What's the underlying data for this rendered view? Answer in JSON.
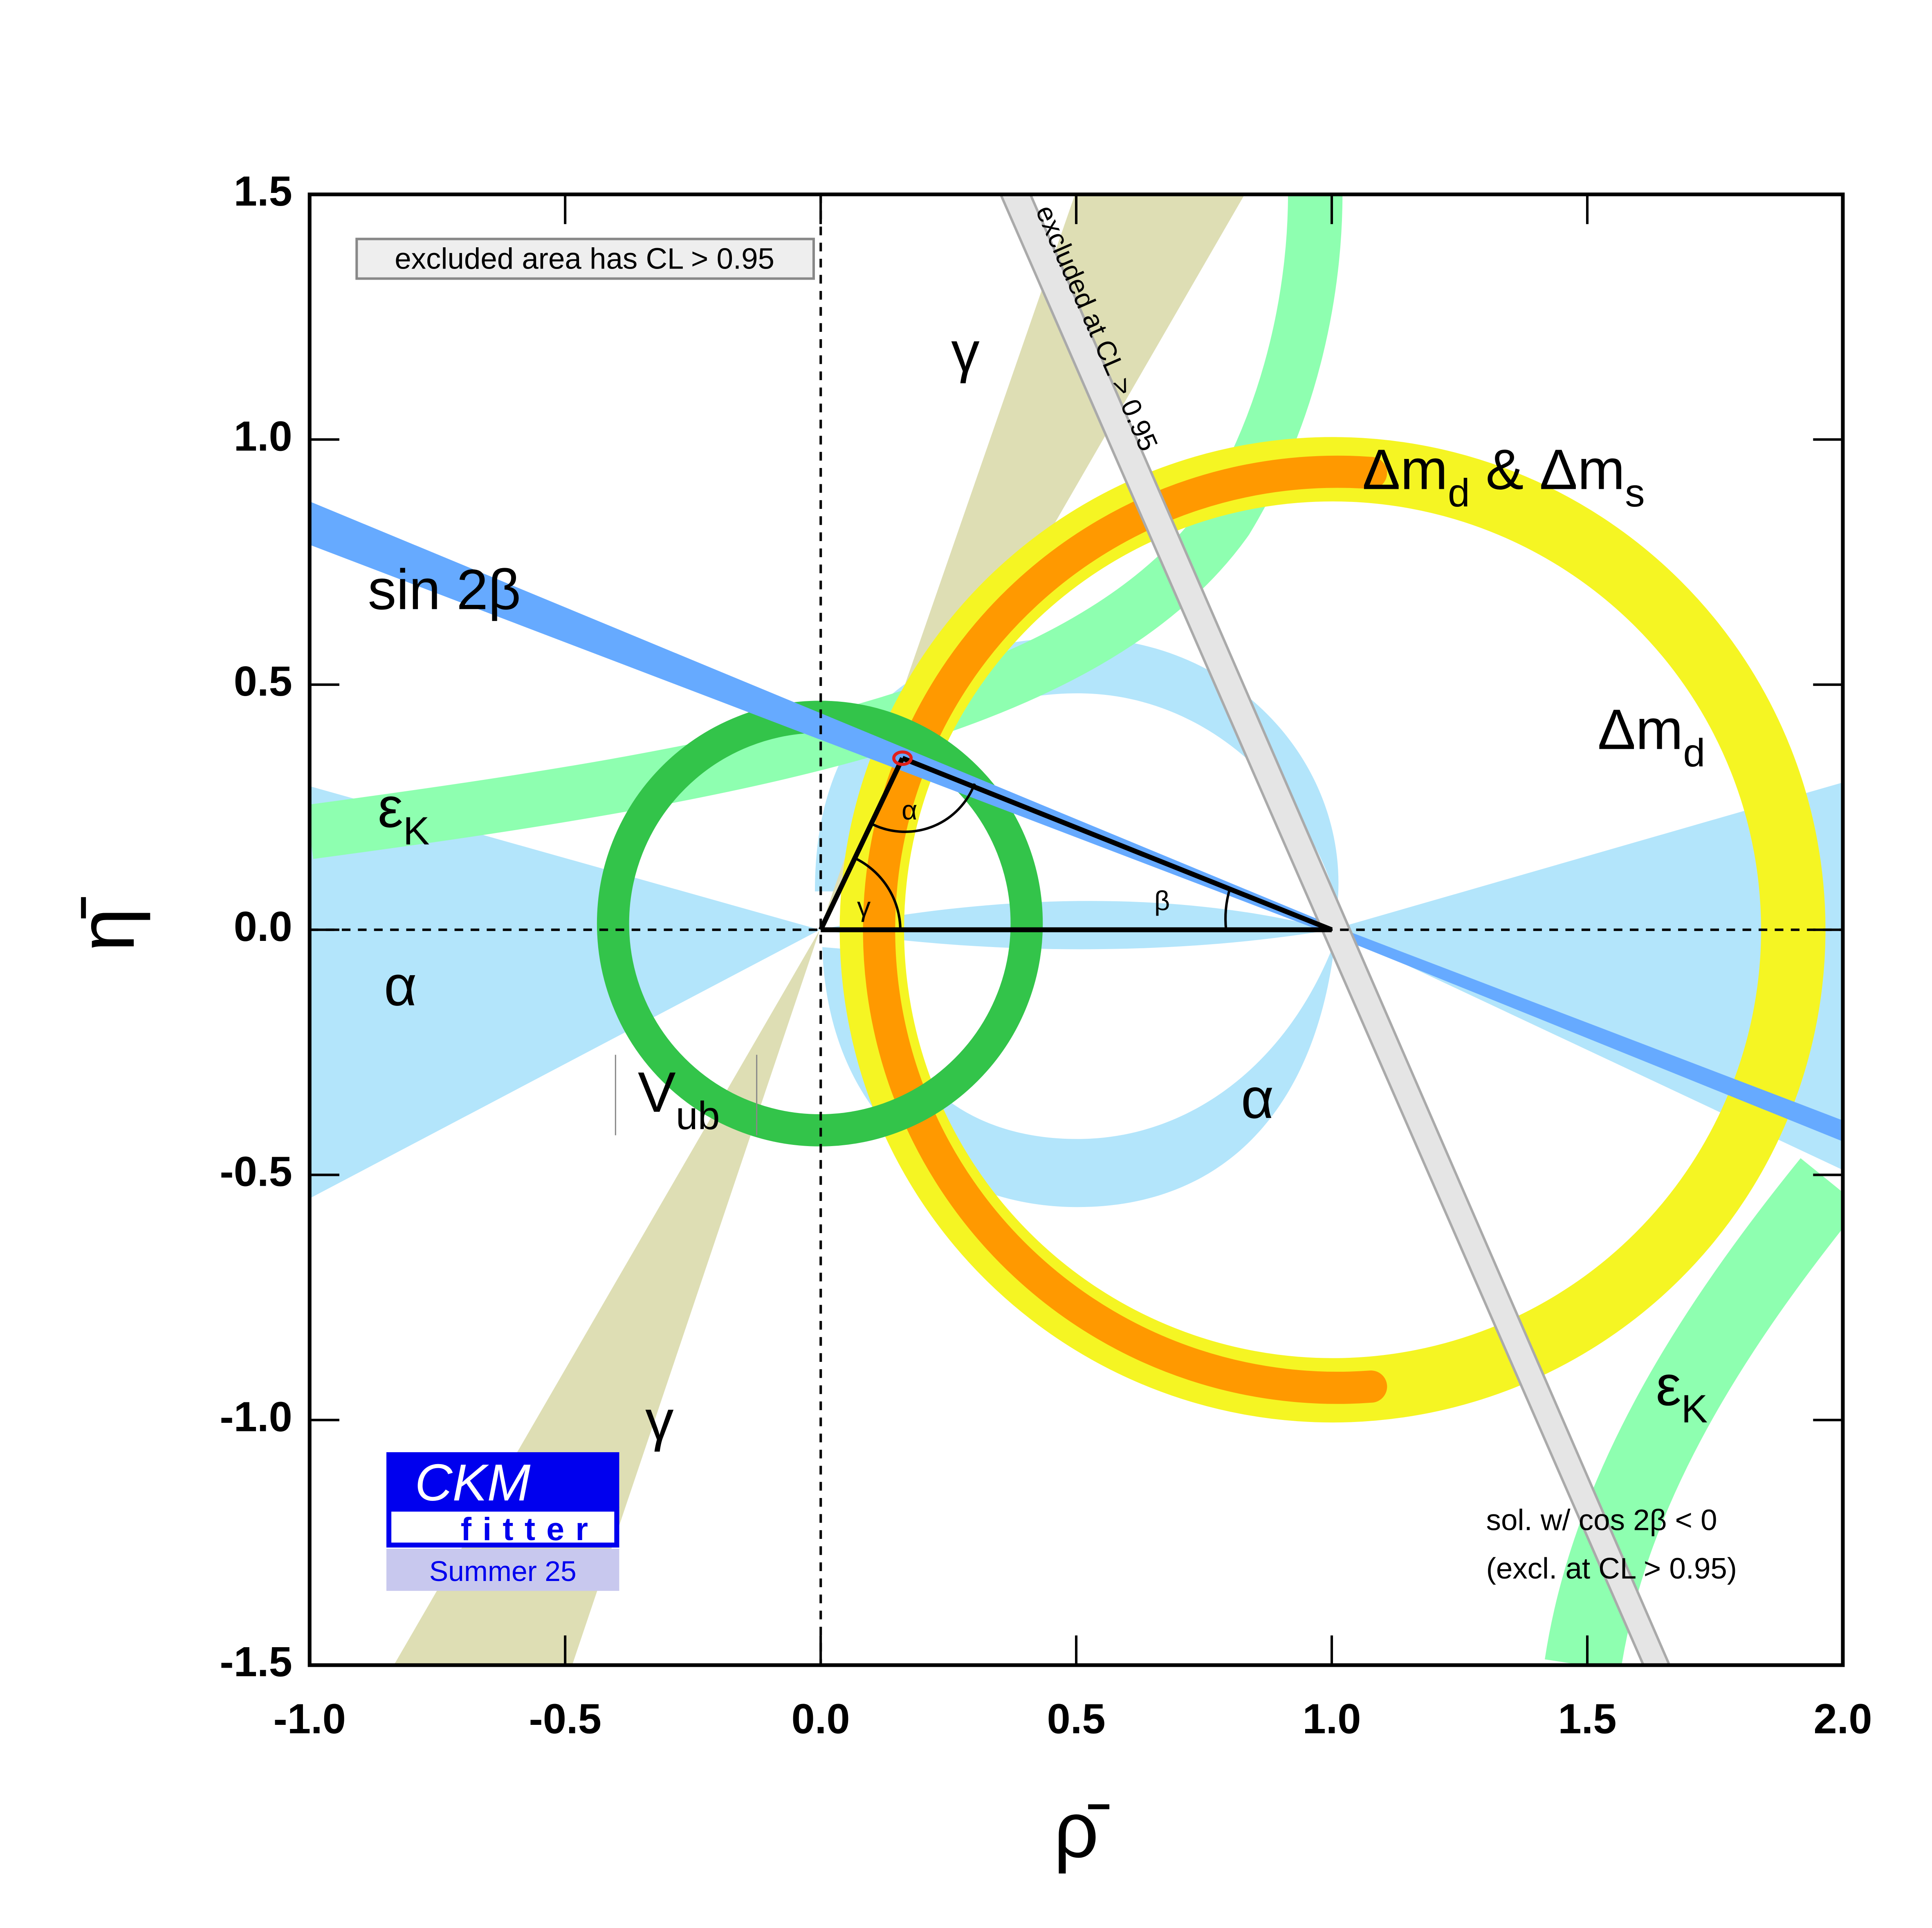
{
  "chart_data": {
    "type": "scatter",
    "x_label": "ρ̄",
    "y_label": "η̄",
    "xlim": [
      -1,
      2
    ],
    "ylim": [
      -1.5,
      1.5
    ],
    "xticks": [
      {
        "value": -1,
        "label": "-1.0"
      },
      -0.5,
      {
        "value": 0,
        "label": "0.0"
      },
      0.5,
      {
        "value": 1,
        "label": "1.0"
      },
      1.5,
      {
        "value": 2,
        "label": "2.0"
      }
    ],
    "yticks": [
      -1.5,
      {
        "value": -1,
        "label": "-1.0"
      },
      -0.5,
      {
        "value": 0,
        "label": "0.0"
      },
      0.5,
      {
        "value": 1,
        "label": "1.0"
      },
      1.5
    ],
    "x": [
      0.16
    ],
    "y": [
      0.35
    ],
    "color": "#e0201b",
    "excluded_note": "excluded area has CL > 0.95",
    "excluded_band_label": "excluded at CL > 0.95",
    "solution_note": [
      "sol. w/ cos 2β < 0",
      "(excl. at CL > 0.95)"
    ],
    "logo": {
      "title": "CKM",
      "subtitle": "fitter",
      "edition": "Summer 25"
    },
    "annotations": [
      {
        "text": "sin 2β"
      },
      {
        "parts": [
          "ε",
          "K"
        ]
      },
      {
        "parts": [
          "ε",
          "K"
        ]
      },
      {
        "text": "α"
      },
      {
        "text": "α"
      },
      {
        "parts": [
          "V",
          "ub"
        ]
      },
      {
        "text": "γ"
      },
      {
        "text": "γ"
      },
      {
        "parts": [
          "Δm",
          "d",
          " & Δm",
          "s"
        ]
      },
      {
        "parts": [
          "Δm",
          "d"
        ]
      },
      {
        "text": "α"
      },
      {
        "text": "γ"
      },
      {
        "text": "β"
      }
    ]
  }
}
